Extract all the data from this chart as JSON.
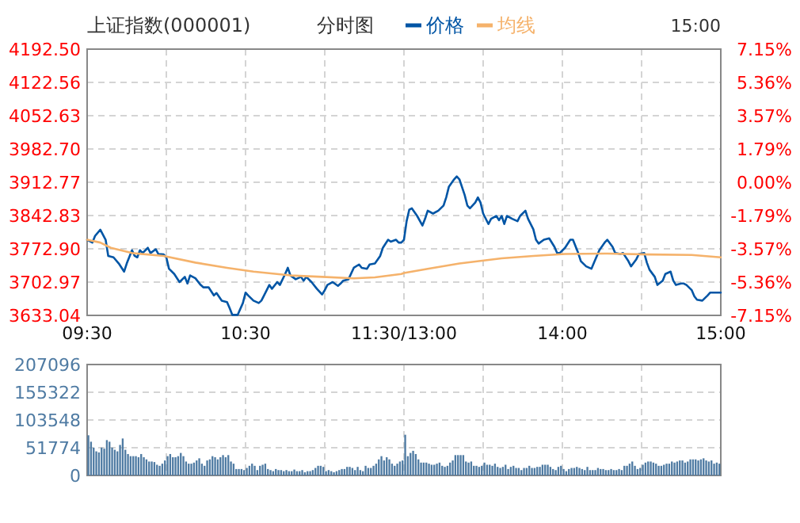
{
  "chart_data": [
    {
      "type": "line",
      "title": "上证指数(000001)",
      "subtitle": "分时图",
      "annotations": [
        "15:00"
      ],
      "legend": "top",
      "grid": true,
      "categories": [
        "09:30",
        null,
        null,
        null,
        null,
        null,
        null,
        null,
        null,
        null,
        null,
        null,
        null,
        null,
        null,
        null,
        null,
        null,
        null,
        null,
        null,
        null,
        null,
        null,
        null,
        null,
        null,
        null,
        null,
        null,
        null,
        null,
        null,
        null,
        null,
        null,
        null,
        null,
        null,
        null,
        null,
        null,
        null,
        null,
        null,
        null,
        null,
        null,
        null,
        null,
        null,
        null,
        null,
        null,
        null,
        null,
        null,
        null,
        null,
        null,
        "10:30",
        null,
        null,
        null,
        null,
        null,
        null,
        null,
        null,
        null,
        null,
        null,
        null,
        null,
        null,
        null,
        null,
        null,
        null,
        null,
        null,
        null,
        null,
        null,
        null,
        null,
        null,
        null,
        null,
        null,
        null,
        null,
        null,
        null,
        null,
        null,
        null,
        null,
        null,
        null,
        null,
        null,
        null,
        null,
        null,
        null,
        null,
        null,
        null,
        null,
        null,
        null,
        null,
        null,
        null,
        null,
        null,
        null,
        null,
        null,
        "11:30/13:00",
        null,
        null,
        null,
        null,
        null,
        null,
        null,
        null,
        null,
        null,
        null,
        null,
        null,
        null,
        null,
        null,
        null,
        null,
        null,
        null,
        null,
        null,
        null,
        null,
        null,
        null,
        null,
        null,
        null,
        null,
        null,
        null,
        null,
        null,
        null,
        null,
        null,
        null,
        null,
        null,
        null,
        null,
        null,
        null,
        null,
        null,
        null,
        null,
        null,
        null,
        null,
        null,
        null,
        null,
        null,
        null,
        null,
        null,
        null,
        "14:00",
        null,
        null,
        null,
        null,
        null,
        null,
        null,
        null,
        null,
        null,
        null,
        null,
        null,
        null,
        null,
        null,
        null,
        null,
        null,
        null,
        null,
        null,
        null,
        null,
        null,
        null,
        null,
        null,
        null,
        null,
        null,
        null,
        null,
        null,
        null,
        null,
        null,
        null,
        null,
        null,
        null,
        null,
        null,
        null,
        null,
        null,
        null,
        null,
        null,
        null,
        null,
        null,
        null,
        null,
        null,
        null,
        null,
        null,
        null,
        "15:00"
      ],
      "ylim": [
        3633.04,
        4192.5
      ],
      "yticks": [
        {
          "value": 3633.04,
          "label": "3633.04"
        },
        {
          "value": 3702.97,
          "label": "3702.97"
        },
        {
          "value": 3772.9,
          "label": "3772.90"
        },
        {
          "value": 3842.83,
          "label": "3842.83"
        },
        {
          "value": 3912.77,
          "label": "3912.77"
        },
        {
          "value": 3982.7,
          "label": "3982.70"
        },
        {
          "value": 4052.63,
          "label": "4052.63"
        },
        {
          "value": 4122.56,
          "label": "4122.56"
        },
        {
          "value": 4192.5,
          "label": "4192.50"
        }
      ],
      "y2lim": [
        -7.15,
        7.15
      ],
      "y2ticks": [
        {
          "value": -7.15,
          "label": "-7.15%"
        },
        {
          "value": -5.36,
          "label": "-5.36%"
        },
        {
          "value": -3.57,
          "label": "-3.57%"
        },
        {
          "value": -1.79,
          "label": "-1.79%"
        },
        {
          "value": 0,
          "label": "0.00%"
        },
        {
          "value": 1.79,
          "label": "1.79%"
        },
        {
          "value": 3.57,
          "label": "3.57%"
        },
        {
          "value": 5.36,
          "label": "5.36%"
        },
        {
          "value": 7.15,
          "label": "7.15%"
        }
      ],
      "series": [
        {
          "name": "价格",
          "color": "#0055a5",
          "values": [
            3792,
            null,
            3786,
            3800,
            null,
            3813,
            null,
            3792,
            3758,
            null,
            3755,
            null,
            3742,
            null,
            3725,
            3742,
            null,
            3770,
            3758,
            3755,
            3770,
            3764,
            null,
            3775,
            3764,
            null,
            3772,
            3762,
            null,
            3761,
            3755,
            3731,
            null,
            3720,
            null,
            3703,
            null,
            3714,
            3700,
            3717,
            null,
            3711,
            null,
            3697,
            3692,
            null,
            3692,
            null,
            3675,
            3680,
            null,
            3664,
            null,
            3661,
            3648,
            3634,
            null,
            3634,
            null,
            3659,
            3681,
            3675,
            null,
            3664,
            null,
            3659,
            3664,
            3675,
            null,
            3697,
            3689,
            null,
            3703,
            3697,
            null,
            3720,
            3733,
            3717,
            null,
            3709,
            null,
            3714,
            3706,
            3714,
            null,
            3703,
            null,
            3689,
            null,
            3677,
            3686,
            3697,
            null,
            3703,
            null,
            3695,
            3700,
            3706,
            null,
            3709,
            null,
            3733,
            null,
            3740,
            3733,
            null,
            3731,
            3740,
            null,
            3742,
            null,
            3758,
            3775,
            null,
            3792,
            3788,
            null,
            3792,
            3786,
            3786,
            3792,
            3831,
            3855,
            3858,
            null,
            3842,
            null,
            3822,
            3836,
            3853,
            null,
            3847,
            null,
            3853,
            null,
            3864,
            3881,
            3903,
            null,
            3919,
            3925,
            3919,
            null,
            3886,
            3864,
            3858,
            null,
            3870,
            3881,
            3870,
            3847,
            null,
            3825,
            3836,
            null,
            3842,
            3833,
            3842,
            3825,
            3842,
            null,
            3836,
            null,
            3831,
            3842,
            null,
            3853,
            3836,
            null,
            3814,
            3792,
            3784,
            null,
            3792,
            null,
            3795,
            null,
            3777,
            3764,
            3764,
            null,
            3775,
            null,
            3792,
            3792,
            null,
            3764,
            3747,
            null,
            3736,
            null,
            3731,
            3744,
            null,
            3770,
            null,
            3786,
            3792,
            null,
            3777,
            3764,
            null,
            3762,
            3764,
            null,
            3747,
            3736,
            null,
            3751,
            3762,
            null,
            3764,
            3744,
            3729,
            null,
            3714,
            3697,
            null,
            3706,
            3720,
            null,
            3725,
            3706,
            3697,
            null,
            3700,
            3700,
            3697,
            null,
            3686,
            3673,
            3666,
            null,
            3664,
            null,
            3675,
            3681,
            null,
            3681,
            null,
            3681
          ]
        },
        {
          "name": "均线",
          "color": "#f5b26b",
          "values": [
            3792,
            null,
            null,
            null,
            null,
            3786,
            null,
            null,
            null,
            3775,
            null,
            null,
            null,
            null,
            null,
            null,
            null,
            3764,
            null,
            null,
            null,
            null,
            null,
            null,
            null,
            null,
            null,
            null,
            null,
            3758,
            null,
            null,
            null,
            null,
            null,
            null,
            null,
            null,
            null,
            null,
            null,
            3744,
            null,
            null,
            null,
            null,
            null,
            null,
            null,
            null,
            null,
            null,
            null,
            3733,
            null,
            null,
            null,
            null,
            null,
            null,
            null,
            null,
            null,
            3725,
            null,
            null,
            null,
            null,
            null,
            null,
            null,
            null,
            null,
            null,
            null,
            null,
            null,
            3717,
            null,
            null,
            null,
            null,
            null,
            null,
            null,
            null,
            null,
            null,
            null,
            3714,
            null,
            null,
            null,
            null,
            null,
            null,
            null,
            null,
            null,
            null,
            null,
            3711,
            null,
            null,
            null,
            null,
            null,
            null,
            null,
            3713,
            null,
            null,
            null,
            null,
            null,
            null,
            null,
            null,
            null,
            3720,
            3722,
            null,
            null,
            null,
            null,
            null,
            null,
            null,
            null,
            3731,
            null,
            null,
            null,
            null,
            null,
            null,
            null,
            null,
            null,
            null,
            null,
            3742,
            null,
            null,
            null,
            null,
            null,
            null,
            null,
            null,
            null,
            null,
            null,
            null,
            null,
            null,
            null,
            3753,
            null,
            null,
            null,
            null,
            null,
            null,
            null,
            null,
            null,
            null,
            null,
            3758,
            null,
            null,
            null,
            null,
            null,
            null,
            null,
            null,
            null,
            null,
            null,
            3762,
            null,
            null,
            null,
            null,
            null,
            null,
            null,
            null,
            null,
            null,
            null,
            null,
            null,
            null,
            null,
            3763,
            null,
            null,
            null,
            null,
            null,
            null,
            null,
            null,
            null,
            null,
            null,
            null,
            null,
            null,
            null,
            3761,
            null,
            null,
            null,
            null,
            null,
            null,
            null,
            null,
            null,
            null,
            null,
            null,
            null,
            null,
            null,
            3760,
            null,
            null,
            null,
            null,
            null,
            null,
            null,
            null,
            null,
            null,
            3755
          ]
        }
      ]
    },
    {
      "type": "bar",
      "grid": true,
      "tick_labels": "y",
      "categories": [
        null,
        null,
        null,
        null,
        null,
        null,
        null,
        null,
        null,
        null,
        null,
        null,
        null,
        null,
        null,
        null,
        null,
        null,
        null,
        null,
        null,
        null,
        null,
        null,
        null,
        null,
        null,
        null,
        null,
        null,
        null,
        null,
        null,
        null,
        null,
        null,
        null,
        null,
        null,
        null,
        null,
        null,
        null,
        null,
        null,
        null,
        null,
        null,
        null,
        null,
        null,
        null,
        null,
        null,
        null,
        null,
        null,
        null,
        null,
        null,
        null,
        null,
        null,
        null,
        null,
        null,
        null,
        null,
        null,
        null,
        null,
        null,
        null,
        null,
        null,
        null,
        null,
        null,
        null,
        null,
        null,
        null,
        null,
        null,
        null,
        null,
        null,
        null,
        null,
        null,
        null,
        null,
        null,
        null,
        null,
        null,
        null,
        null,
        null,
        null,
        null,
        null,
        null,
        null,
        null,
        null,
        null,
        null,
        null,
        null,
        null,
        null,
        null,
        null,
        null,
        null,
        null,
        null,
        null,
        null,
        null,
        null,
        null,
        null,
        null,
        null,
        null,
        null,
        null,
        null,
        null,
        null,
        null,
        null,
        null,
        null,
        null,
        null,
        null,
        null,
        null,
        null,
        null,
        null,
        null,
        null,
        null,
        null,
        null,
        null,
        null,
        null,
        null,
        null,
        null,
        null,
        null,
        null,
        null,
        null,
        null,
        null,
        null,
        null,
        null,
        null,
        null,
        null,
        null,
        null,
        null,
        null,
        null,
        null,
        null,
        null,
        null,
        null,
        null,
        null,
        null,
        null,
        null,
        null,
        null,
        null,
        null,
        null,
        null,
        null,
        null,
        null,
        null,
        null,
        null,
        null,
        null,
        null,
        null,
        null,
        null,
        null,
        null,
        null,
        null,
        null,
        null,
        null,
        null,
        null,
        null,
        null,
        null,
        null,
        null,
        null,
        null,
        null,
        null,
        null,
        null,
        null,
        null,
        null,
        null,
        null,
        null,
        null,
        null,
        null,
        null,
        null,
        null,
        null,
        null,
        null,
        null,
        null,
        null,
        null
      ],
      "ylim": [
        0,
        207096
      ],
      "yticks": [
        0,
        51774,
        103548,
        155322,
        207096
      ],
      "series": [
        {
          "color": "#4f7ba3",
          "values": [
            75000,
            63000,
            52000,
            45000,
            43000,
            52000,
            50000,
            66000,
            63000,
            52000,
            48000,
            45000,
            57000,
            69000,
            48000,
            40000,
            36000,
            36000,
            36000,
            34000,
            40000,
            34000,
            30000,
            26000,
            26000,
            25000,
            20000,
            18000,
            22000,
            28000,
            36000,
            40000,
            34000,
            34000,
            36000,
            42000,
            36000,
            26000,
            22000,
            22000,
            24000,
            28000,
            32000,
            22000,
            18000,
            28000,
            30000,
            36000,
            34000,
            30000,
            34000,
            38000,
            34000,
            38000,
            26000,
            22000,
            12000,
            12000,
            12000,
            10000,
            14000,
            18000,
            22000,
            18000,
            10000,
            18000,
            20000,
            22000,
            12000,
            10000,
            8000,
            12000,
            10000,
            10000,
            8000,
            10000,
            8000,
            8000,
            11000,
            8000,
            8000,
            10000,
            6000,
            8000,
            8000,
            10000,
            14000,
            18000,
            18000,
            16000,
            8000,
            10000,
            8000,
            6000,
            8000,
            10000,
            12000,
            12000,
            16000,
            16000,
            14000,
            10000,
            16000,
            10000,
            8000,
            18000,
            14000,
            14000,
            18000,
            22000,
            30000,
            36000,
            28000,
            34000,
            30000,
            22000,
            18000,
            22000,
            26000,
            28000,
            76000,
            36000,
            42000,
            46000,
            40000,
            30000,
            24000,
            24000,
            24000,
            22000,
            20000,
            20000,
            22000,
            24000,
            18000,
            16000,
            18000,
            24000,
            28000,
            38000,
            38000,
            38000,
            38000,
            26000,
            24000,
            26000,
            18000,
            18000,
            16000,
            18000,
            24000,
            20000,
            20000,
            18000,
            22000,
            16000,
            14000,
            16000,
            20000,
            12000,
            16000,
            18000,
            14000,
            14000,
            10000,
            14000,
            14000,
            18000,
            14000,
            14000,
            16000,
            16000,
            20000,
            20000,
            20000,
            16000,
            12000,
            10000,
            16000,
            18000,
            12000,
            8000,
            12000,
            14000,
            14000,
            16000,
            14000,
            12000,
            10000,
            16000,
            10000,
            10000,
            10000,
            14000,
            12000,
            12000,
            10000,
            10000,
            12000,
            10000,
            10000,
            12000,
            10000,
            18000,
            18000,
            22000,
            26000,
            18000,
            12000,
            14000,
            20000,
            24000,
            26000,
            26000,
            24000,
            22000,
            18000,
            18000,
            20000,
            22000,
            22000,
            26000,
            24000,
            26000,
            28000,
            28000,
            24000,
            26000,
            30000,
            30000,
            30000,
            28000,
            30000,
            32000,
            28000,
            26000,
            28000,
            22000,
            24000,
            22000
          ]
        }
      ]
    }
  ]
}
